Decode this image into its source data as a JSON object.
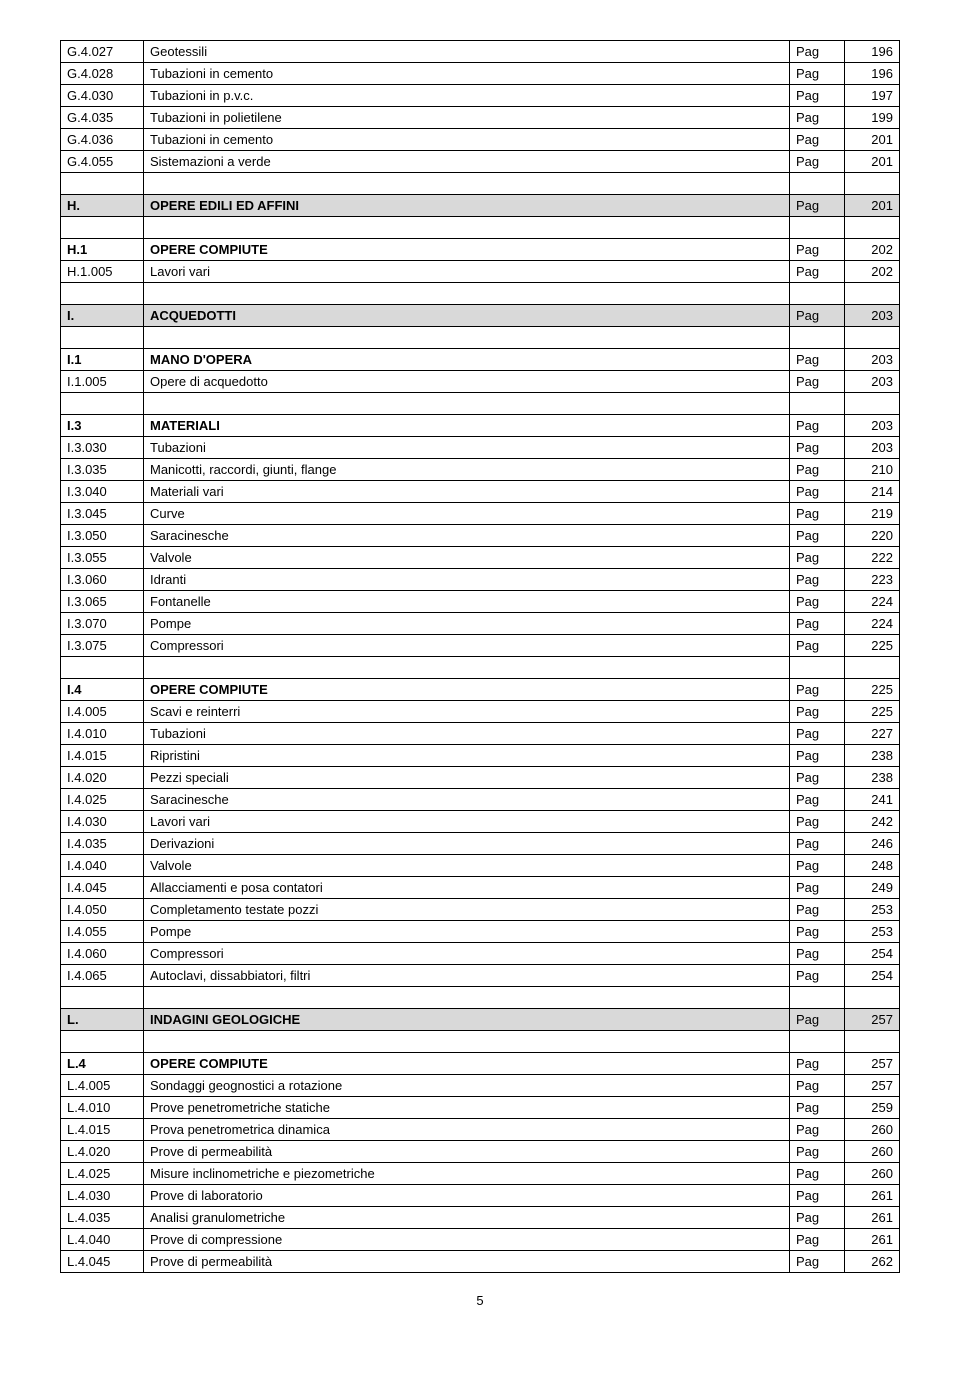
{
  "pag_label": "Pag",
  "page_number": "5",
  "rows": [
    {
      "type": "item",
      "code": "G.4.027",
      "desc": "Geotessili",
      "num": "196"
    },
    {
      "type": "item",
      "code": "G.4.028",
      "desc": "Tubazioni in cemento",
      "num": "196"
    },
    {
      "type": "item",
      "code": "G.4.030",
      "desc": "Tubazioni in p.v.c.",
      "num": "197"
    },
    {
      "type": "item",
      "code": "G.4.035",
      "desc": "Tubazioni in polietilene",
      "num": "199"
    },
    {
      "type": "item",
      "code": "G.4.036",
      "desc": "Tubazioni in cemento",
      "num": "201"
    },
    {
      "type": "item",
      "code": "G.4.055",
      "desc": "Sistemazioni a verde",
      "num": "201"
    },
    {
      "type": "empty"
    },
    {
      "type": "section",
      "code": "H.",
      "desc": "OPERE EDILI ED AFFINI",
      "num": "201"
    },
    {
      "type": "empty"
    },
    {
      "type": "bold",
      "code": "H.1",
      "desc": "OPERE COMPIUTE",
      "num": "202"
    },
    {
      "type": "item",
      "code": "H.1.005",
      "desc": "Lavori vari",
      "num": "202"
    },
    {
      "type": "empty"
    },
    {
      "type": "section",
      "code": "I.",
      "desc": "ACQUEDOTTI",
      "num": "203"
    },
    {
      "type": "empty"
    },
    {
      "type": "bold",
      "code": "I.1",
      "desc": "MANO D'OPERA",
      "num": "203"
    },
    {
      "type": "item",
      "code": "I.1.005",
      "desc": "Opere di acquedotto",
      "num": "203"
    },
    {
      "type": "empty"
    },
    {
      "type": "bold",
      "code": "I.3",
      "desc": "MATERIALI",
      "num": "203"
    },
    {
      "type": "item",
      "code": "I.3.030",
      "desc": "Tubazioni",
      "num": "203"
    },
    {
      "type": "item",
      "code": "I.3.035",
      "desc": "Manicotti, raccordi, giunti, flange",
      "num": "210"
    },
    {
      "type": "item",
      "code": "I.3.040",
      "desc": "Materiali vari",
      "num": "214"
    },
    {
      "type": "item",
      "code": "I.3.045",
      "desc": "Curve",
      "num": "219"
    },
    {
      "type": "item",
      "code": "I.3.050",
      "desc": "Saracinesche",
      "num": "220"
    },
    {
      "type": "item",
      "code": "I.3.055",
      "desc": "Valvole",
      "num": "222"
    },
    {
      "type": "item",
      "code": "I.3.060",
      "desc": "Idranti",
      "num": "223"
    },
    {
      "type": "item",
      "code": "I.3.065",
      "desc": "Fontanelle",
      "num": "224"
    },
    {
      "type": "item",
      "code": "I.3.070",
      "desc": "Pompe",
      "num": "224"
    },
    {
      "type": "item",
      "code": "I.3.075",
      "desc": "Compressori",
      "num": "225"
    },
    {
      "type": "empty"
    },
    {
      "type": "bold",
      "code": "I.4",
      "desc": "OPERE COMPIUTE",
      "num": "225"
    },
    {
      "type": "item",
      "code": "I.4.005",
      "desc": "Scavi e reinterri",
      "num": "225"
    },
    {
      "type": "item",
      "code": "I.4.010",
      "desc": "Tubazioni",
      "num": "227"
    },
    {
      "type": "item",
      "code": "I.4.015",
      "desc": "Ripristini",
      "num": "238"
    },
    {
      "type": "item",
      "code": "I.4.020",
      "desc": "Pezzi speciali",
      "num": "238"
    },
    {
      "type": "item",
      "code": "I.4.025",
      "desc": "Saracinesche",
      "num": "241"
    },
    {
      "type": "item",
      "code": "I.4.030",
      "desc": "Lavori vari",
      "num": "242"
    },
    {
      "type": "item",
      "code": "I.4.035",
      "desc": "Derivazioni",
      "num": "246"
    },
    {
      "type": "item",
      "code": "I.4.040",
      "desc": "Valvole",
      "num": "248"
    },
    {
      "type": "item",
      "code": "I.4.045",
      "desc": "Allacciamenti e posa contatori",
      "num": "249"
    },
    {
      "type": "item",
      "code": "I.4.050",
      "desc": "Completamento testate pozzi",
      "num": "253"
    },
    {
      "type": "item",
      "code": "I.4.055",
      "desc": "Pompe",
      "num": "253"
    },
    {
      "type": "item",
      "code": "I.4.060",
      "desc": "Compressori",
      "num": "254"
    },
    {
      "type": "item",
      "code": "I.4.065",
      "desc": "Autoclavi, dissabbiatori, filtri",
      "num": "254"
    },
    {
      "type": "empty"
    },
    {
      "type": "section",
      "code": "L.",
      "desc": "INDAGINI GEOLOGICHE",
      "num": "257"
    },
    {
      "type": "empty"
    },
    {
      "type": "bold",
      "code": "L.4",
      "desc": "OPERE COMPIUTE",
      "num": "257"
    },
    {
      "type": "item",
      "code": "L.4.005",
      "desc": "Sondaggi geognostici a rotazione",
      "num": "257"
    },
    {
      "type": "item",
      "code": "L.4.010",
      "desc": "Prove penetrometriche statiche",
      "num": "259"
    },
    {
      "type": "item",
      "code": "L.4.015",
      "desc": "Prova penetrometrica dinamica",
      "num": "260"
    },
    {
      "type": "item",
      "code": "L.4.020",
      "desc": "Prove di permeabilità",
      "num": "260"
    },
    {
      "type": "item",
      "code": "L.4.025",
      "desc": "Misure inclinometriche e piezometriche",
      "num": "260"
    },
    {
      "type": "item",
      "code": "L.4.030",
      "desc": "Prove di laboratorio",
      "num": "261"
    },
    {
      "type": "item",
      "code": "L.4.035",
      "desc": "Analisi granulometriche",
      "num": "261"
    },
    {
      "type": "item",
      "code": "L.4.040",
      "desc": "Prove di compressione",
      "num": "261"
    },
    {
      "type": "item",
      "code": "L.4.045",
      "desc": "Prove di permeabilità",
      "num": "262"
    }
  ]
}
